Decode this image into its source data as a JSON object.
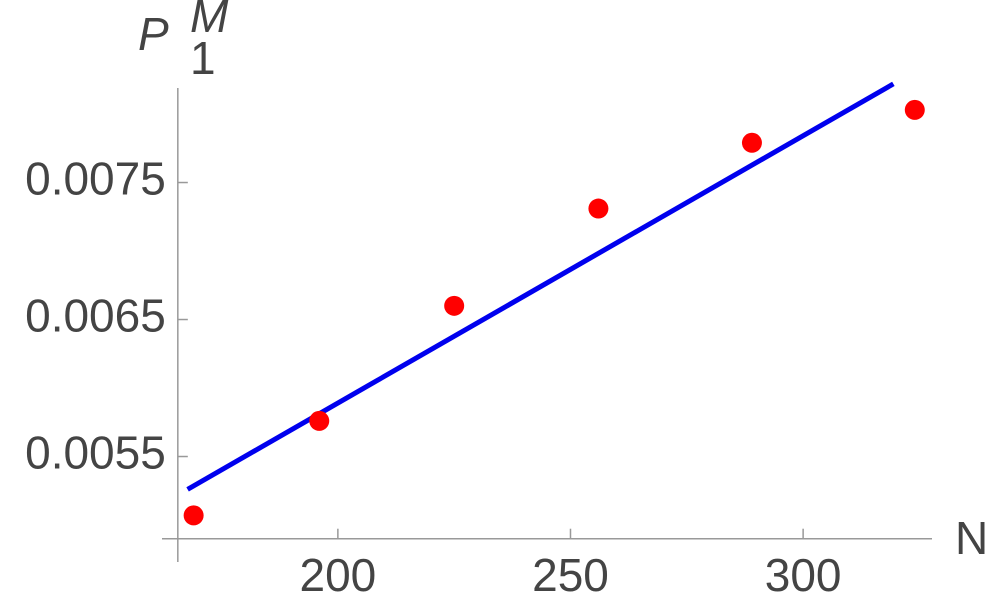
{
  "chart_data": {
    "type": "scatter",
    "xlabel": "N",
    "ylabel": {
      "base": "P",
      "sub": "1",
      "sup": "M"
    },
    "x": [
      169,
      196,
      225,
      256,
      289,
      324
    ],
    "values": [
      0.00507,
      0.00576,
      0.0066,
      0.00731,
      0.00779,
      0.00803
    ],
    "color": "#ff0000",
    "fit": {
      "x": [
        167.7,
        319.4
      ],
      "values": [
        0.00526,
        0.00822
      ],
      "color": "#0000ee"
    },
    "xlim": [
      162.2,
      327.7
    ],
    "ylim": [
      0.00473,
      0.00819
    ],
    "xticks": [
      200,
      250,
      300
    ],
    "yticks": [
      0.0055,
      0.0065,
      0.0075
    ],
    "axes_origin": [
      165.6,
      0.0049
    ]
  }
}
